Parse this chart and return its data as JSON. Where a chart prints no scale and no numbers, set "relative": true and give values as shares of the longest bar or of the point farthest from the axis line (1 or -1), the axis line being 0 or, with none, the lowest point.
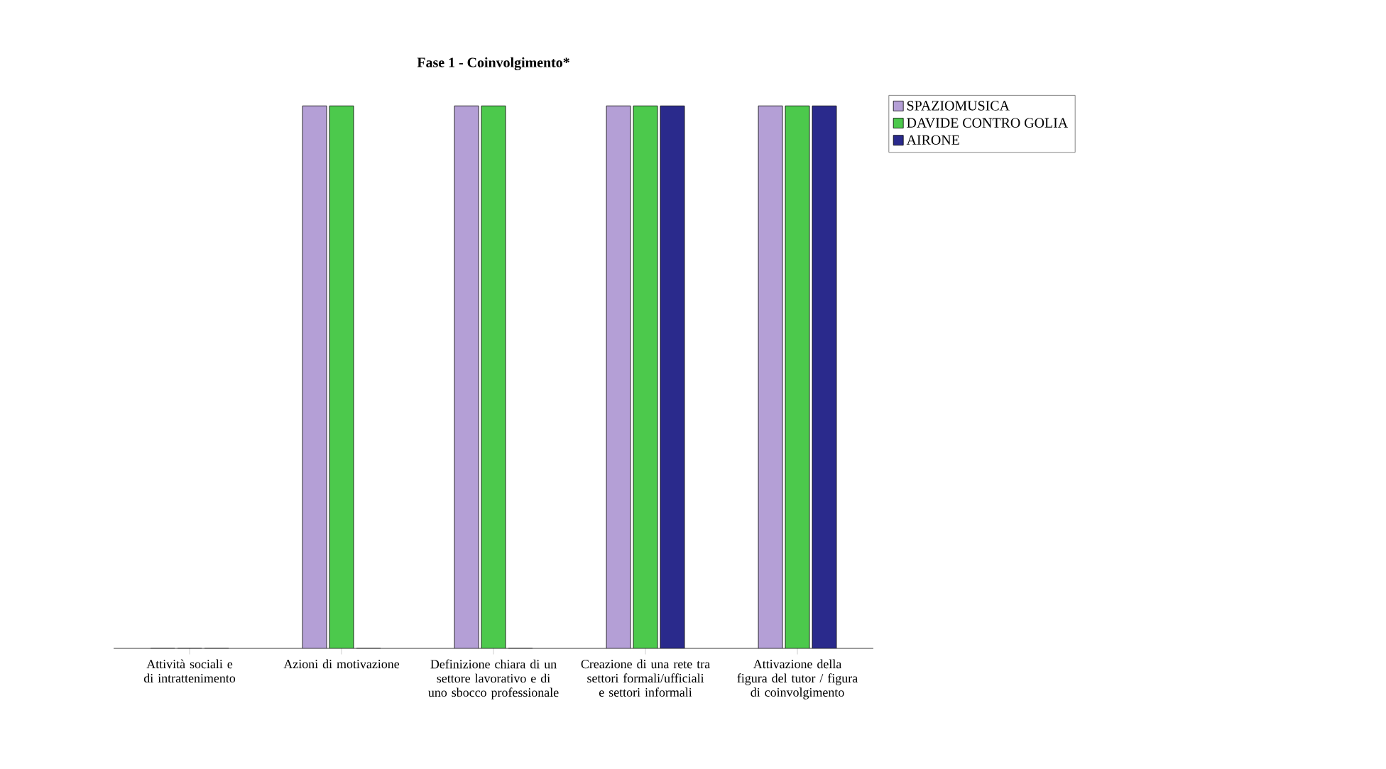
{
  "chart_data": {
    "type": "bar",
    "title": "Fase 1 - Coinvolgimento*",
    "relative": true,
    "categories": [
      "Attività sociali e di intrattenimento",
      "Azioni di motivazione",
      "Definizione chiara di un settore lavorativo e di uno sbocco professionale",
      "Creazione di una rete tra settori formali/ufficiali e settori informali",
      "Attivazione della figura del tutor / figura di coinvolgimento"
    ],
    "series": [
      {
        "name": "SPAZIOMUSICA",
        "color": "#b49fd6",
        "values": [
          0,
          1,
          1,
          1,
          1
        ]
      },
      {
        "name": "DAVIDE CONTRO GOLIA",
        "color": "#4cc94c",
        "values": [
          0,
          1,
          1,
          1,
          1
        ]
      },
      {
        "name": "AIRONE",
        "color": "#2a2a8c",
        "values": [
          0,
          0,
          0,
          1,
          1
        ]
      }
    ],
    "legend": "top right"
  }
}
